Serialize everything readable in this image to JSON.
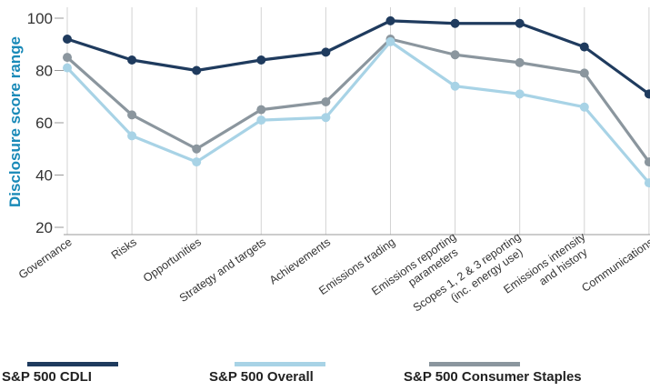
{
  "chart_data": {
    "type": "line",
    "title": "",
    "xlabel": "",
    "ylabel": "Disclosure score range",
    "ylim": [
      20,
      100
    ],
    "yticks": [
      "20",
      "40",
      "60",
      "80",
      "100"
    ],
    "grid": "vertical",
    "legend_position": "bottom",
    "categories": [
      [
        "Governance"
      ],
      [
        "Risks"
      ],
      [
        "Opportunities"
      ],
      [
        "Strategy and targets"
      ],
      [
        "Achievements"
      ],
      [
        "Emissions trading"
      ],
      [
        "Emissions reporting",
        "parameters"
      ],
      [
        "Scopes 1, 2 & 3 reporting",
        "(inc. energy use)"
      ],
      [
        "Emissions intensity",
        "and history"
      ],
      [
        "Communications"
      ]
    ],
    "series": [
      {
        "name": "S&P 500 CDLI",
        "color": "#1f3b5e",
        "values": [
          92,
          84,
          80,
          84,
          87,
          99,
          98,
          98,
          89,
          71
        ]
      },
      {
        "name": "S&P 500 Overall",
        "color": "#a8d3e6",
        "values": [
          81,
          55,
          45,
          61,
          62,
          91,
          74,
          71,
          66,
          37
        ]
      },
      {
        "name": "S&P 500 Consumer Staples",
        "color": "#8b969e",
        "values": [
          85,
          63,
          50,
          65,
          68,
          92,
          86,
          83,
          79,
          45
        ]
      }
    ]
  }
}
